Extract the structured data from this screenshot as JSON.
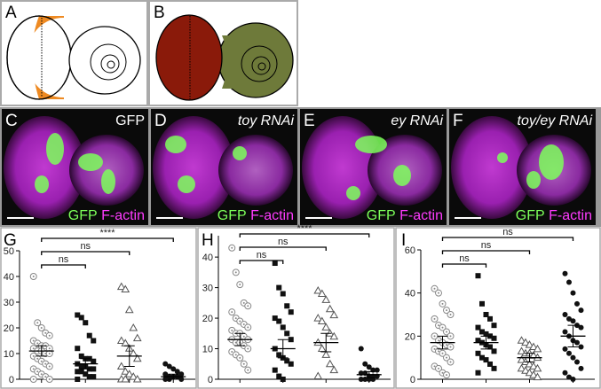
{
  "figure": {
    "panel_labels": [
      "A",
      "B",
      "C",
      "D",
      "E",
      "F"
    ],
    "image_titles": [
      "GFP",
      "toy RNAi",
      "ey RNAi",
      "toy/ey RNAi"
    ],
    "stain_labels": [
      "GFP",
      "F-actin"
    ]
  },
  "chart_data": [
    {
      "type": "strip",
      "title": "G",
      "ylim": [
        0,
        50
      ],
      "yticks": [
        0,
        10,
        20,
        30,
        40,
        50
      ],
      "comparisons": [
        "ns",
        "ns",
        "****"
      ],
      "series": [
        {
          "marker": "circle-dot",
          "color": "#888888",
          "mean": 11,
          "error": 2,
          "values": [
            40,
            22,
            20,
            18,
            17,
            15,
            14,
            13,
            13,
            12,
            12,
            11,
            11,
            10,
            10,
            9,
            8,
            7,
            6,
            5,
            4,
            3,
            2,
            1,
            0,
            0
          ]
        },
        {
          "marker": "square",
          "color": "#111111",
          "mean": 6,
          "error": 2,
          "values": [
            25,
            24,
            22,
            17,
            15,
            12,
            9,
            8,
            8,
            7,
            6,
            5,
            5,
            4,
            4,
            3,
            3,
            2,
            1,
            1,
            0
          ]
        },
        {
          "marker": "triangle",
          "color": "#555555",
          "mean": 9,
          "error": 4,
          "values": [
            36,
            35,
            27,
            20,
            16,
            15,
            14,
            12,
            10,
            8,
            5,
            3,
            2,
            1,
            0,
            0,
            0
          ]
        },
        {
          "marker": "circle",
          "color": "#111111",
          "mean": 1,
          "error": 1,
          "values": [
            6,
            5,
            4,
            3,
            2,
            2,
            1,
            1,
            1,
            0,
            0,
            0
          ]
        }
      ]
    },
    {
      "type": "strip",
      "title": "H",
      "ylim": [
        0,
        47
      ],
      "yticks": [
        0,
        10,
        20,
        30,
        40
      ],
      "comparisons": [
        "ns",
        "ns",
        "****"
      ],
      "series": [
        {
          "marker": "circle-dot",
          "color": "#888888",
          "mean": 13,
          "error": 2,
          "values": [
            43,
            35,
            31,
            25,
            24,
            22,
            20,
            19,
            18,
            17,
            16,
            15,
            15,
            14,
            13,
            13,
            12,
            12,
            11,
            10,
            9,
            8,
            7,
            5,
            3
          ]
        },
        {
          "marker": "square",
          "color": "#111111",
          "mean": 10,
          "error": 3,
          "values": [
            38,
            30,
            28,
            24,
            22,
            20,
            19,
            17,
            15,
            13,
            10,
            8,
            7,
            6,
            5,
            3,
            1,
            0
          ]
        },
        {
          "marker": "triangle",
          "color": "#555555",
          "mean": 12,
          "error": 3,
          "values": [
            29,
            28,
            26,
            23,
            21,
            20,
            19,
            17,
            15,
            14,
            12,
            10,
            8,
            5,
            3,
            1
          ]
        },
        {
          "marker": "circle",
          "color": "#111111",
          "mean": 1.5,
          "error": 1,
          "values": [
            10,
            5,
            4,
            3,
            3,
            2,
            2,
            1,
            1,
            1,
            0,
            0,
            0,
            0
          ]
        }
      ]
    },
    {
      "type": "strip",
      "title": "I",
      "ylim": [
        0,
        60
      ],
      "yticks": [
        0,
        20,
        40,
        60
      ],
      "comparisons": [
        "ns",
        "ns",
        "ns"
      ],
      "series": [
        {
          "marker": "circle-dot",
          "color": "#888888",
          "mean": 17,
          "error": 3,
          "values": [
            42,
            40,
            35,
            32,
            30,
            28,
            25,
            24,
            22,
            20,
            20,
            18,
            17,
            16,
            15,
            14,
            13,
            12,
            10,
            8,
            6,
            5,
            3,
            2
          ]
        },
        {
          "marker": "square",
          "color": "#111111",
          "mean": 17,
          "error": 3,
          "values": [
            48,
            35,
            30,
            28,
            25,
            24,
            22,
            21,
            20,
            19,
            18,
            17,
            16,
            15,
            13,
            12,
            10,
            9,
            7,
            5,
            3
          ]
        },
        {
          "marker": "triangle",
          "color": "#555555",
          "mean": 10,
          "error": 2,
          "values": [
            18,
            17,
            16,
            15,
            14,
            13,
            12,
            12,
            11,
            10,
            9,
            8,
            7,
            6,
            5,
            5,
            4,
            3,
            2,
            1
          ]
        },
        {
          "marker": "circle",
          "color": "#111111",
          "mean": 20,
          "error": 5,
          "values": [
            49,
            45,
            40,
            35,
            32,
            30,
            28,
            27,
            25,
            24,
            22,
            20,
            18,
            17,
            15,
            14,
            12,
            10,
            8,
            5,
            3,
            1,
            0
          ]
        }
      ]
    }
  ]
}
